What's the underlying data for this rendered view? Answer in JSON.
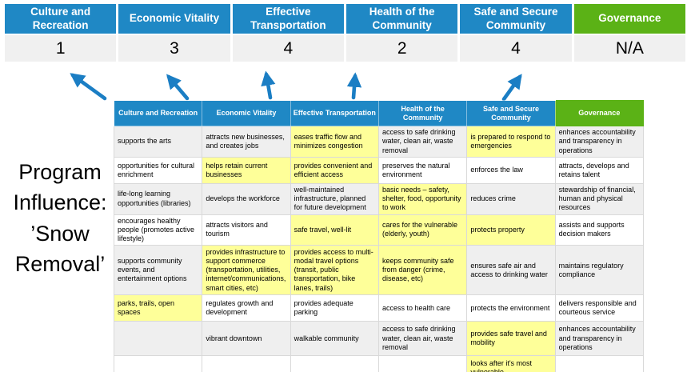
{
  "title": {
    "lines": [
      "Program",
      "Influence:",
      "’Snow",
      "Removal’"
    ]
  },
  "colors": {
    "blue": "#1f88c5",
    "green": "#5bb216",
    "arrow": "#1b7ec4",
    "highlight": "#feff99",
    "band": "#efefef",
    "score_bg": "#f0f0f0"
  },
  "scorecard": {
    "columns": [
      {
        "label": "Culture and Recreation",
        "score": "1",
        "accent": "blue"
      },
      {
        "label": "Economic Vitality",
        "score": "3",
        "accent": "blue"
      },
      {
        "label": "Effective Transportation",
        "score": "4",
        "accent": "blue"
      },
      {
        "label": "Health of the Community",
        "score": "2",
        "accent": "blue"
      },
      {
        "label": "Safe and Secure Community",
        "score": "4",
        "accent": "blue"
      },
      {
        "label": "Governance",
        "score": "N/A",
        "accent": "green"
      }
    ]
  },
  "matrix": {
    "headers": [
      {
        "label": "Culture and Recreation",
        "accent": "blue"
      },
      {
        "label": "Economic Vitality",
        "accent": "blue"
      },
      {
        "label": "Effective Transportation",
        "accent": "blue"
      },
      {
        "label": "Health of the Community",
        "accent": "blue"
      },
      {
        "label": "Safe and Secure Community",
        "accent": "blue"
      },
      {
        "label": "Governance",
        "accent": "green"
      }
    ],
    "rows": [
      {
        "cells": [
          {
            "text": "supports the arts",
            "highlight": false
          },
          {
            "text": "attracts new businesses, and creates jobs",
            "highlight": false
          },
          {
            "text": "eases traffic flow and minimizes congestion",
            "highlight": true
          },
          {
            "text": "access to safe drinking water, clean air, waste removal",
            "highlight": false
          },
          {
            "text": "is prepared to respond to emergencies",
            "highlight": true
          },
          {
            "text": "enhances accountability and transparency in operations",
            "highlight": false
          }
        ]
      },
      {
        "cells": [
          {
            "text": "opportunities for cultural enrichment",
            "highlight": false
          },
          {
            "text": "helps retain current businesses",
            "highlight": true
          },
          {
            "text": "provides convenient and efficient access",
            "highlight": true
          },
          {
            "text": "preserves the natural environment",
            "highlight": false
          },
          {
            "text": "enforces the law",
            "highlight": false
          },
          {
            "text": "attracts, develops and retains talent",
            "highlight": false
          }
        ]
      },
      {
        "cells": [
          {
            "text": "life-long learning opportunities (libraries)",
            "highlight": false
          },
          {
            "text": "develops the workforce",
            "highlight": false
          },
          {
            "text": "well-maintained infrastructure, planned for future development",
            "highlight": false
          },
          {
            "text": "basic needs – safety, shelter, food, opportunity to work",
            "highlight": true
          },
          {
            "text": "reduces crime",
            "highlight": false
          },
          {
            "text": "stewardship of financial, human and physical resources",
            "highlight": false
          }
        ]
      },
      {
        "cells": [
          {
            "text": "encourages healthy people (promotes active lifestyle)",
            "highlight": false
          },
          {
            "text": "attracts visitors and tourism",
            "highlight": false
          },
          {
            "text": "safe travel, well-lit",
            "highlight": true
          },
          {
            "text": "cares for the vulnerable (elderly, youth)",
            "highlight": true
          },
          {
            "text": "protects property",
            "highlight": true
          },
          {
            "text": "assists and supports decision makers",
            "highlight": false
          }
        ]
      },
      {
        "cells": [
          {
            "text": "supports community events, and entertainment options",
            "highlight": false
          },
          {
            "text": "provides infrastructure to support commerce (transportation, utilities, internet/communications, smart cities, etc)",
            "highlight": true
          },
          {
            "text": "provides access to multi-modal travel options (transit, public transportation, bike lanes, trails)",
            "highlight": true
          },
          {
            "text": "keeps community safe from danger (crime, disease, etc)",
            "highlight": true
          },
          {
            "text": "ensures safe air and access to drinking water",
            "highlight": false
          },
          {
            "text": "maintains regulatory compliance",
            "highlight": false
          }
        ]
      },
      {
        "cells": [
          {
            "text": "parks, trails, open spaces",
            "highlight": true
          },
          {
            "text": "regulates growth and development",
            "highlight": false
          },
          {
            "text": "provides adequate parking",
            "highlight": false
          },
          {
            "text": "access to health care",
            "highlight": false
          },
          {
            "text": "protects the environment",
            "highlight": false
          },
          {
            "text": "delivers responsible and courteous service",
            "highlight": false
          }
        ]
      },
      {
        "cells": [
          {
            "text": "",
            "highlight": false
          },
          {
            "text": "vibrant downtown",
            "highlight": false
          },
          {
            "text": "walkable community",
            "highlight": false
          },
          {
            "text": "access to safe drinking water, clean air, waste removal",
            "highlight": false
          },
          {
            "text": "provides safe travel and mobility",
            "highlight": true
          },
          {
            "text": "enhances accountability and transparency in operations",
            "highlight": false
          }
        ]
      },
      {
        "cells": [
          {
            "text": "",
            "highlight": false
          },
          {
            "text": "",
            "highlight": false
          },
          {
            "text": "",
            "highlight": false
          },
          {
            "text": "",
            "highlight": false
          },
          {
            "text": "looks after it's most vulnerable",
            "highlight": true
          },
          {
            "text": "",
            "highlight": false
          }
        ]
      }
    ]
  }
}
